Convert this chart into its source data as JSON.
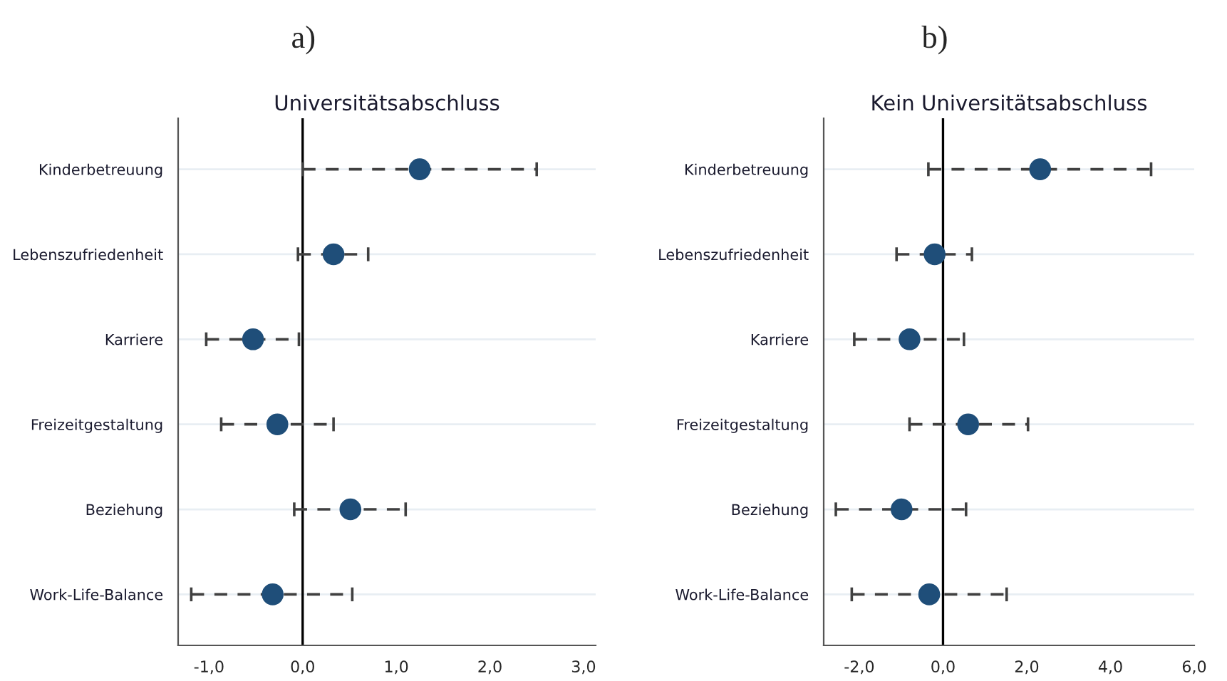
{
  "chart_data": [
    {
      "type": "scatter",
      "title": "Universitätsabschluss",
      "annotations": [
        "a)"
      ],
      "categories": [
        "Kinderbetreuung",
        "Lebenszufriedenheit",
        "Karriere",
        "Freizeitgestaltung",
        "Beziehung",
        "Work-Life-Balance"
      ],
      "orientation": "horizontal",
      "values": [
        1.25,
        0.33,
        -0.53,
        -0.27,
        0.51,
        -0.32
      ],
      "errors": [
        [
          0.0,
          2.5
        ],
        [
          -0.05,
          0.7
        ],
        [
          -1.03,
          -0.04
        ],
        [
          -0.87,
          0.33
        ],
        [
          -0.09,
          1.1
        ],
        [
          -1.19,
          0.53
        ]
      ],
      "colors": [
        "#1f4e79",
        "#1f4e79",
        "#1f4e79",
        "#1f4e79",
        "#1f4e79",
        "#1f4e79"
      ],
      "xlim": [
        -1.33,
        3.13
      ],
      "xticks": [
        {
          "value": -1,
          "label": "-1,0"
        },
        {
          "value": 0,
          "label": "0,0"
        },
        {
          "value": 1,
          "label": "1,0"
        },
        {
          "value": 2,
          "label": "2,0"
        },
        {
          "value": 3,
          "label": "3,0"
        }
      ],
      "ref_lines": [
        {
          "axis": "x",
          "value": 0,
          "color": "#000000"
        }
      ],
      "grid": "y",
      "marker": "circle",
      "line_style": "dashed",
      "legend": false
    },
    {
      "type": "scatter",
      "title": "Kein Universitätsabschluss",
      "annotations": [
        "b)"
      ],
      "categories": [
        "Kinderbetreuung",
        "Lebenszufriedenheit",
        "Karriere",
        "Freizeitgestaltung",
        "Beziehung",
        "Work-Life-Balance"
      ],
      "orientation": "horizontal",
      "values": [
        2.32,
        -0.2,
        -0.8,
        0.6,
        -0.99,
        -0.33
      ],
      "errors": [
        [
          -0.35,
          4.97
        ],
        [
          -1.11,
          0.69
        ],
        [
          -2.12,
          0.5
        ],
        [
          -0.8,
          2.03
        ],
        [
          -2.56,
          0.55
        ],
        [
          -2.18,
          1.52
        ]
      ],
      "colors": [
        "#1f4e79",
        "#1f4e79",
        "#1f4e79",
        "#1f4e79",
        "#1f4e79",
        "#1f4e79"
      ],
      "xlim": [
        -2.85,
        6.0
      ],
      "xticks": [
        {
          "value": -2,
          "label": "-2,0"
        },
        {
          "value": 0,
          "label": "0,0"
        },
        {
          "value": 2,
          "label": "2,0"
        },
        {
          "value": 4,
          "label": "4,0"
        },
        {
          "value": 6,
          "label": "6,0"
        }
      ],
      "ref_lines": [
        {
          "axis": "x",
          "value": 0,
          "color": "#000000"
        }
      ],
      "grid": "y",
      "marker": "circle",
      "line_style": "dashed",
      "legend": false
    }
  ]
}
